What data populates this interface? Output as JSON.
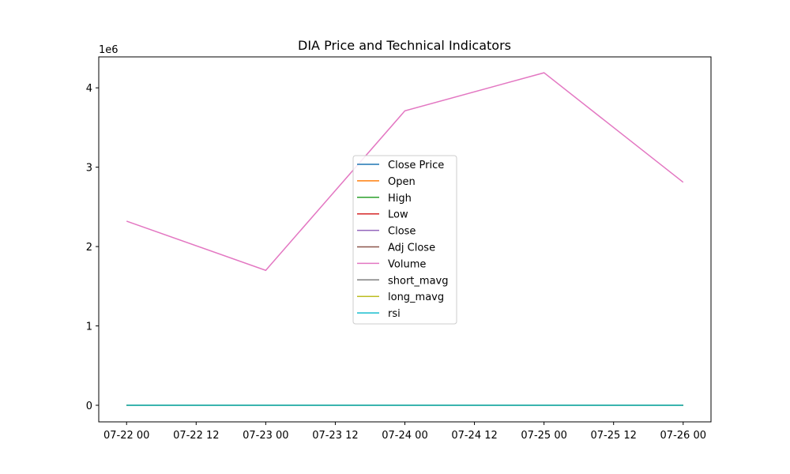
{
  "chart_data": {
    "type": "line",
    "title": "DIA Price and Technical Indicators",
    "xlabel": "",
    "ylabel": "",
    "y_offset_text": "1e6",
    "x": [
      "2024-07-22",
      "2024-07-23",
      "2024-07-24",
      "2024-07-25",
      "2024-07-26"
    ],
    "x_ticks": [
      "07-22 00",
      "07-22 12",
      "07-23 00",
      "07-23 12",
      "07-24 00",
      "07-24 12",
      "07-25 00",
      "07-25 12",
      "07-26 00"
    ],
    "y_ticks": [
      "0",
      "1",
      "2",
      "3",
      "4"
    ],
    "xlim": [
      "2024-07-21T19:12",
      "2024-07-26T04:48"
    ],
    "ylim": [
      -209000,
      4390000
    ],
    "grid": false,
    "legend_position": "center",
    "series": [
      {
        "name": "Close Price",
        "color": "#1f77b4",
        "values": [
          400,
          402,
          398,
          395,
          401
        ]
      },
      {
        "name": "Open",
        "color": "#ff7f0e",
        "values": [
          399,
          401,
          400,
          396,
          398
        ]
      },
      {
        "name": "High",
        "color": "#2ca02c",
        "values": [
          402,
          403,
          401,
          399,
          403
        ]
      },
      {
        "name": "Low",
        "color": "#d62728",
        "values": [
          397,
          399,
          397,
          393,
          397
        ]
      },
      {
        "name": "Close",
        "color": "#9467bd",
        "values": [
          400,
          402,
          398,
          395,
          401
        ]
      },
      {
        "name": "Adj Close",
        "color": "#8c564b",
        "values": [
          400,
          402,
          398,
          395,
          401
        ]
      },
      {
        "name": "Volume",
        "color": "#e377c2",
        "values": [
          2320000,
          1700000,
          3710000,
          4190000,
          2810000
        ]
      },
      {
        "name": "short_mavg",
        "color": "#7f7f7f",
        "values": [
          400,
          401,
          400,
          398,
          398
        ]
      },
      {
        "name": "long_mavg",
        "color": "#bcbd22",
        "values": [
          400,
          401,
          400,
          399,
          399
        ]
      },
      {
        "name": "rsi",
        "color": "#17becf",
        "values": [
          50,
          55,
          45,
          40,
          52
        ]
      }
    ]
  }
}
